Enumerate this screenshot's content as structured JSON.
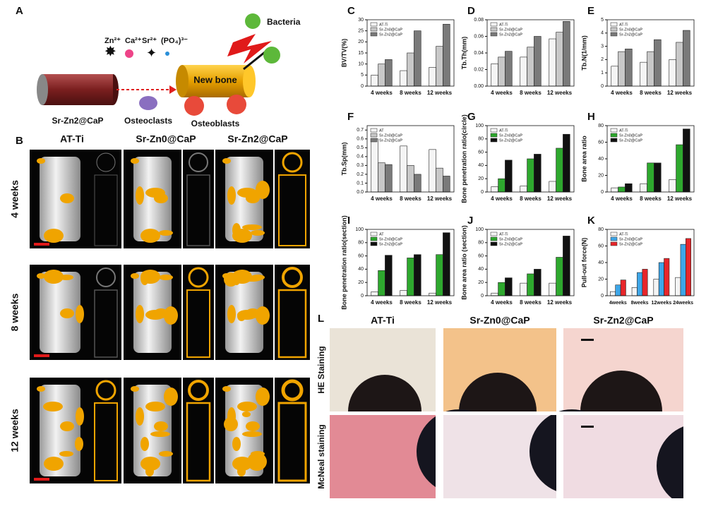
{
  "panel_a": {
    "label": "A",
    "ions": [
      "Zn²⁺",
      "Ca²⁺",
      "Sr²⁺",
      "(PO₄)³⁻"
    ],
    "implant": "Sr-Zn2@CaP",
    "osteoclasts": "Osteoclasts",
    "new_bone": "New bone",
    "bacteria": "Bacteria",
    "osteoblasts": "Osteoblasts"
  },
  "panel_b": {
    "label": "B",
    "columns": [
      "AT-Ti",
      "Sr-Zn0@CaP",
      "Sr-Zn2@CaP"
    ],
    "rows": [
      "4 weeks",
      "8 weeks",
      "12 weeks"
    ]
  },
  "chart_data": [
    {
      "type": "bar",
      "panel": "C",
      "y_label": "BV/TV(%)",
      "categories": [
        "4 weeks",
        "8 weeks",
        "12 weeks"
      ],
      "ylim": [
        0,
        30
      ],
      "yticks": [
        0,
        5,
        10,
        15,
        20,
        25,
        30
      ],
      "series": [
        {
          "name": "AT-Ti",
          "color": "#f4f4f4",
          "values": [
            5,
            7,
            8.5
          ]
        },
        {
          "name": "Sr-Zn0@CaP",
          "color": "#c8c8c8",
          "values": [
            10,
            15,
            18
          ]
        },
        {
          "name": "Sr-Zn2@CaP",
          "color": "#7a7a7a",
          "values": [
            12,
            25,
            28
          ]
        }
      ]
    },
    {
      "type": "bar",
      "panel": "D",
      "y_label": "Tb.Th(mm)",
      "categories": [
        "4 weeks",
        "8 weeks",
        "12 weeks"
      ],
      "ylim": [
        0,
        0.08
      ],
      "yticks": [
        {
          "value": 0,
          "label": "0.00"
        },
        {
          "value": 0.02,
          "label": "0.02"
        },
        {
          "value": 0.04,
          "label": "0.04"
        },
        {
          "value": 0.06,
          "label": "0.06"
        },
        {
          "value": 0.08,
          "label": "0.08"
        }
      ],
      "series": [
        {
          "name": "AT-Ti",
          "color": "#f4f4f4",
          "values": [
            0.027,
            0.035,
            0.057
          ]
        },
        {
          "name": "Sr-Zn0@CaP",
          "color": "#c8c8c8",
          "values": [
            0.035,
            0.047,
            0.065
          ]
        },
        {
          "name": "Sr-Zn2@CaP",
          "color": "#7a7a7a",
          "values": [
            0.042,
            0.06,
            0.078
          ]
        }
      ]
    },
    {
      "type": "bar",
      "panel": "E",
      "y_label": "Tb.N(1/mm)",
      "categories": [
        "4 weeks",
        "8 weeks",
        "12 weeks"
      ],
      "ylim": [
        0,
        5
      ],
      "yticks": [
        0,
        1,
        2,
        3,
        4,
        5
      ],
      "series": [
        {
          "name": "AT-Ti",
          "color": "#f4f4f4",
          "values": [
            1.5,
            1.8,
            2.0
          ]
        },
        {
          "name": "Sr-Zn0@CaP",
          "color": "#c8c8c8",
          "values": [
            2.6,
            2.6,
            3.3
          ]
        },
        {
          "name": "Sr-Zn2@CaP",
          "color": "#7a7a7a",
          "values": [
            2.8,
            3.5,
            4.2
          ]
        }
      ]
    },
    {
      "type": "bar",
      "panel": "F",
      "y_label": "Tb.Sp(mm)",
      "categories": [
        "4 weeks",
        "8 weeks",
        "12 weeks"
      ],
      "ylim": [
        0,
        0.75
      ],
      "yticks": [
        {
          "value": 0,
          "label": "0.0"
        },
        0.1,
        0.2,
        0.3,
        0.4,
        0.5,
        0.6,
        0.7
      ],
      "series": [
        {
          "name": "AT",
          "color": "#f4f4f4",
          "values": [
            0.6,
            0.52,
            0.48
          ]
        },
        {
          "name": "Sr-Zn0@CaP",
          "color": "#c8c8c8",
          "values": [
            0.33,
            0.3,
            0.27
          ]
        },
        {
          "name": "Sr-Zn2@CaP",
          "color": "#7a7a7a",
          "values": [
            0.31,
            0.2,
            0.18
          ]
        }
      ]
    },
    {
      "type": "bar",
      "panel": "G",
      "y_label": "Bone penetration ratio(circle)",
      "categories": [
        "4 weeks",
        "8 weeks",
        "12 weeks"
      ],
      "ylim": [
        0,
        100
      ],
      "yticks": [
        0,
        20,
        40,
        60,
        80,
        100
      ],
      "series": [
        {
          "name": "AT-Ti",
          "color": "#f4f4f4",
          "values": [
            8,
            9,
            16
          ]
        },
        {
          "name": "Sr-Zn0@CaP",
          "color": "#2ea82e",
          "values": [
            20,
            50,
            66
          ]
        },
        {
          "name": "Sr-Zn2@CaP",
          "color": "#111111",
          "values": [
            48,
            57,
            87
          ]
        }
      ]
    },
    {
      "type": "bar",
      "panel": "H",
      "y_label": "Bone area ratio",
      "categories": [
        "4 weeks",
        "8 weeks",
        "12 weeks"
      ],
      "ylim": [
        0,
        80
      ],
      "yticks": [
        0,
        20,
        40,
        60,
        80
      ],
      "series": [
        {
          "name": "AT-Ti",
          "color": "#f4f4f4",
          "values": [
            5,
            10,
            15
          ]
        },
        {
          "name": "Sr-Zn0@CaP",
          "color": "#2ea82e",
          "values": [
            6,
            35,
            57
          ]
        },
        {
          "name": "Sr-Zn2@CaP",
          "color": "#111111",
          "values": [
            10,
            35,
            76
          ]
        }
      ]
    },
    {
      "type": "bar",
      "panel": "I",
      "y_label": "Bone penetration ratio(section)",
      "categories": [
        "4 weeks",
        "8 weeks",
        "12 weeks"
      ],
      "ylim": [
        0,
        100
      ],
      "yticks": [
        0,
        20,
        40,
        60,
        80,
        100
      ],
      "series": [
        {
          "name": "AT",
          "color": "#f4f4f4",
          "values": [
            6,
            8,
            4
          ]
        },
        {
          "name": "Sr-Zn0@CaP",
          "color": "#2ea82e",
          "values": [
            38,
            57,
            62
          ]
        },
        {
          "name": "Sr-Zn2@CaP",
          "color": "#111111",
          "values": [
            61,
            62,
            95
          ]
        }
      ]
    },
    {
      "type": "bar",
      "panel": "J",
      "y_label": "Bone area ratio (section)",
      "categories": [
        "4 weeks",
        "8 weeks",
        "12 weeks"
      ],
      "ylim": [
        0,
        100
      ],
      "yticks": [
        0,
        20,
        40,
        60,
        80,
        100
      ],
      "series": [
        {
          "name": "AT-Ti",
          "color": "#f4f4f4",
          "values": [
            4,
            19,
            19
          ]
        },
        {
          "name": "Sr-Zn0@CaP",
          "color": "#2ea82e",
          "values": [
            20,
            33,
            58
          ]
        },
        {
          "name": "Sr-Zn2@CaP",
          "color": "#111111",
          "values": [
            27,
            40,
            90
          ]
        }
      ]
    },
    {
      "type": "bar",
      "panel": "K",
      "y_label": "Pull-out force(N)",
      "categories": [
        "4weeks",
        "8weeks",
        "12weeks",
        "24weeks"
      ],
      "ylim": [
        0,
        80
      ],
      "yticks": [
        0,
        20,
        40,
        60,
        80
      ],
      "series": [
        {
          "name": "AT-Ti",
          "color": "#f4f4f4",
          "values": [
            5,
            10,
            20,
            22
          ]
        },
        {
          "name": "Sr-Zn0@CaP",
          "color": "#3ea6e8",
          "values": [
            13,
            28,
            40,
            62
          ]
        },
        {
          "name": "Sr-Zn2@CaP",
          "color": "#e8262a",
          "values": [
            19,
            32,
            45,
            69
          ]
        }
      ]
    }
  ],
  "panel_l": {
    "label": "L",
    "columns": [
      "AT-Ti",
      "Sr-Zn0@CaP",
      "Sr-Zn2@CaP"
    ],
    "rows": [
      "HE Staining",
      "McNeal staining"
    ]
  }
}
